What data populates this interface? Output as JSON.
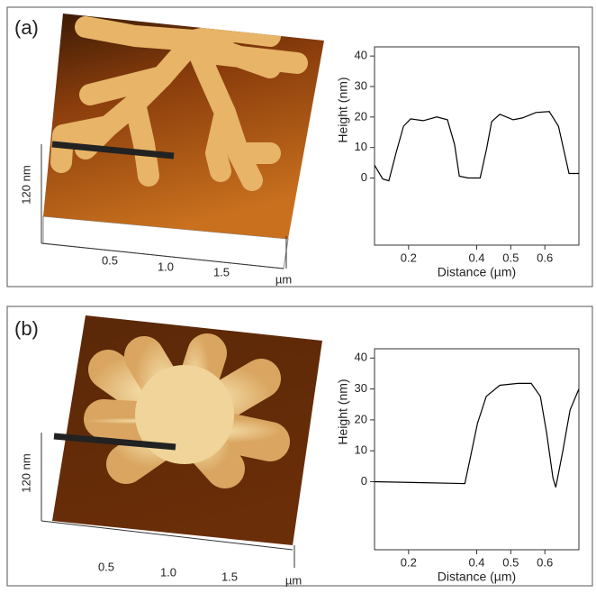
{
  "panels": [
    {
      "label": "(a)",
      "afm": {
        "z_scale": "120 nm",
        "x_ticks": [
          "0.5",
          "1.0",
          "1.5"
        ],
        "x_unit": "µm"
      }
    },
    {
      "label": "(b)",
      "afm": {
        "z_scale": "120 nm",
        "x_ticks": [
          "0.5",
          "1.0",
          "1.5"
        ],
        "x_unit": "µm"
      }
    }
  ],
  "chart_data": [
    {
      "type": "line",
      "ylabel": "Height (nm)",
      "xlabel": "Distance (µm)",
      "color": "#000000",
      "x": [
        0.1,
        0.124,
        0.142,
        0.163,
        0.185,
        0.206,
        0.243,
        0.283,
        0.314,
        0.335,
        0.349,
        0.375,
        0.41,
        0.429,
        0.444,
        0.468,
        0.507,
        0.534,
        0.574,
        0.613,
        0.64,
        0.661,
        0.671,
        0.7
      ],
      "values": [
        4.2,
        -0.3,
        -0.9,
        8.1,
        17.0,
        19.4,
        18.8,
        20.0,
        19.1,
        11.0,
        0.6,
        0,
        0,
        9.6,
        18.5,
        20.9,
        19.1,
        19.7,
        21.5,
        21.8,
        17.0,
        6.6,
        1.5,
        1.5
      ],
      "xlim": [
        0.1,
        0.7
      ],
      "ylim": [
        -22,
        43
      ],
      "xticks": [
        0.2,
        0.4,
        0.5,
        0.6
      ],
      "yticks": [
        0,
        10,
        20,
        30,
        40
      ]
    },
    {
      "type": "line",
      "ylabel": "Height (nm)",
      "xlabel": "Distance (µm)",
      "color": "#000000",
      "x": [
        0.1,
        0.243,
        0.365,
        0.38,
        0.402,
        0.428,
        0.468,
        0.521,
        0.56,
        0.587,
        0.605,
        0.624,
        0.632,
        0.653,
        0.674,
        0.7
      ],
      "values": [
        0,
        -0.3,
        -0.6,
        7.1,
        18.8,
        27.6,
        31.2,
        31.8,
        31.8,
        27.6,
        15.9,
        1.2,
        -1.8,
        10.0,
        23.2,
        30.0
      ],
      "xlim": [
        0.1,
        0.7
      ],
      "ylim": [
        -22,
        43
      ],
      "xticks": [
        0.2,
        0.4,
        0.5,
        0.6
      ],
      "yticks": [
        0,
        10,
        20,
        30,
        40
      ]
    }
  ]
}
